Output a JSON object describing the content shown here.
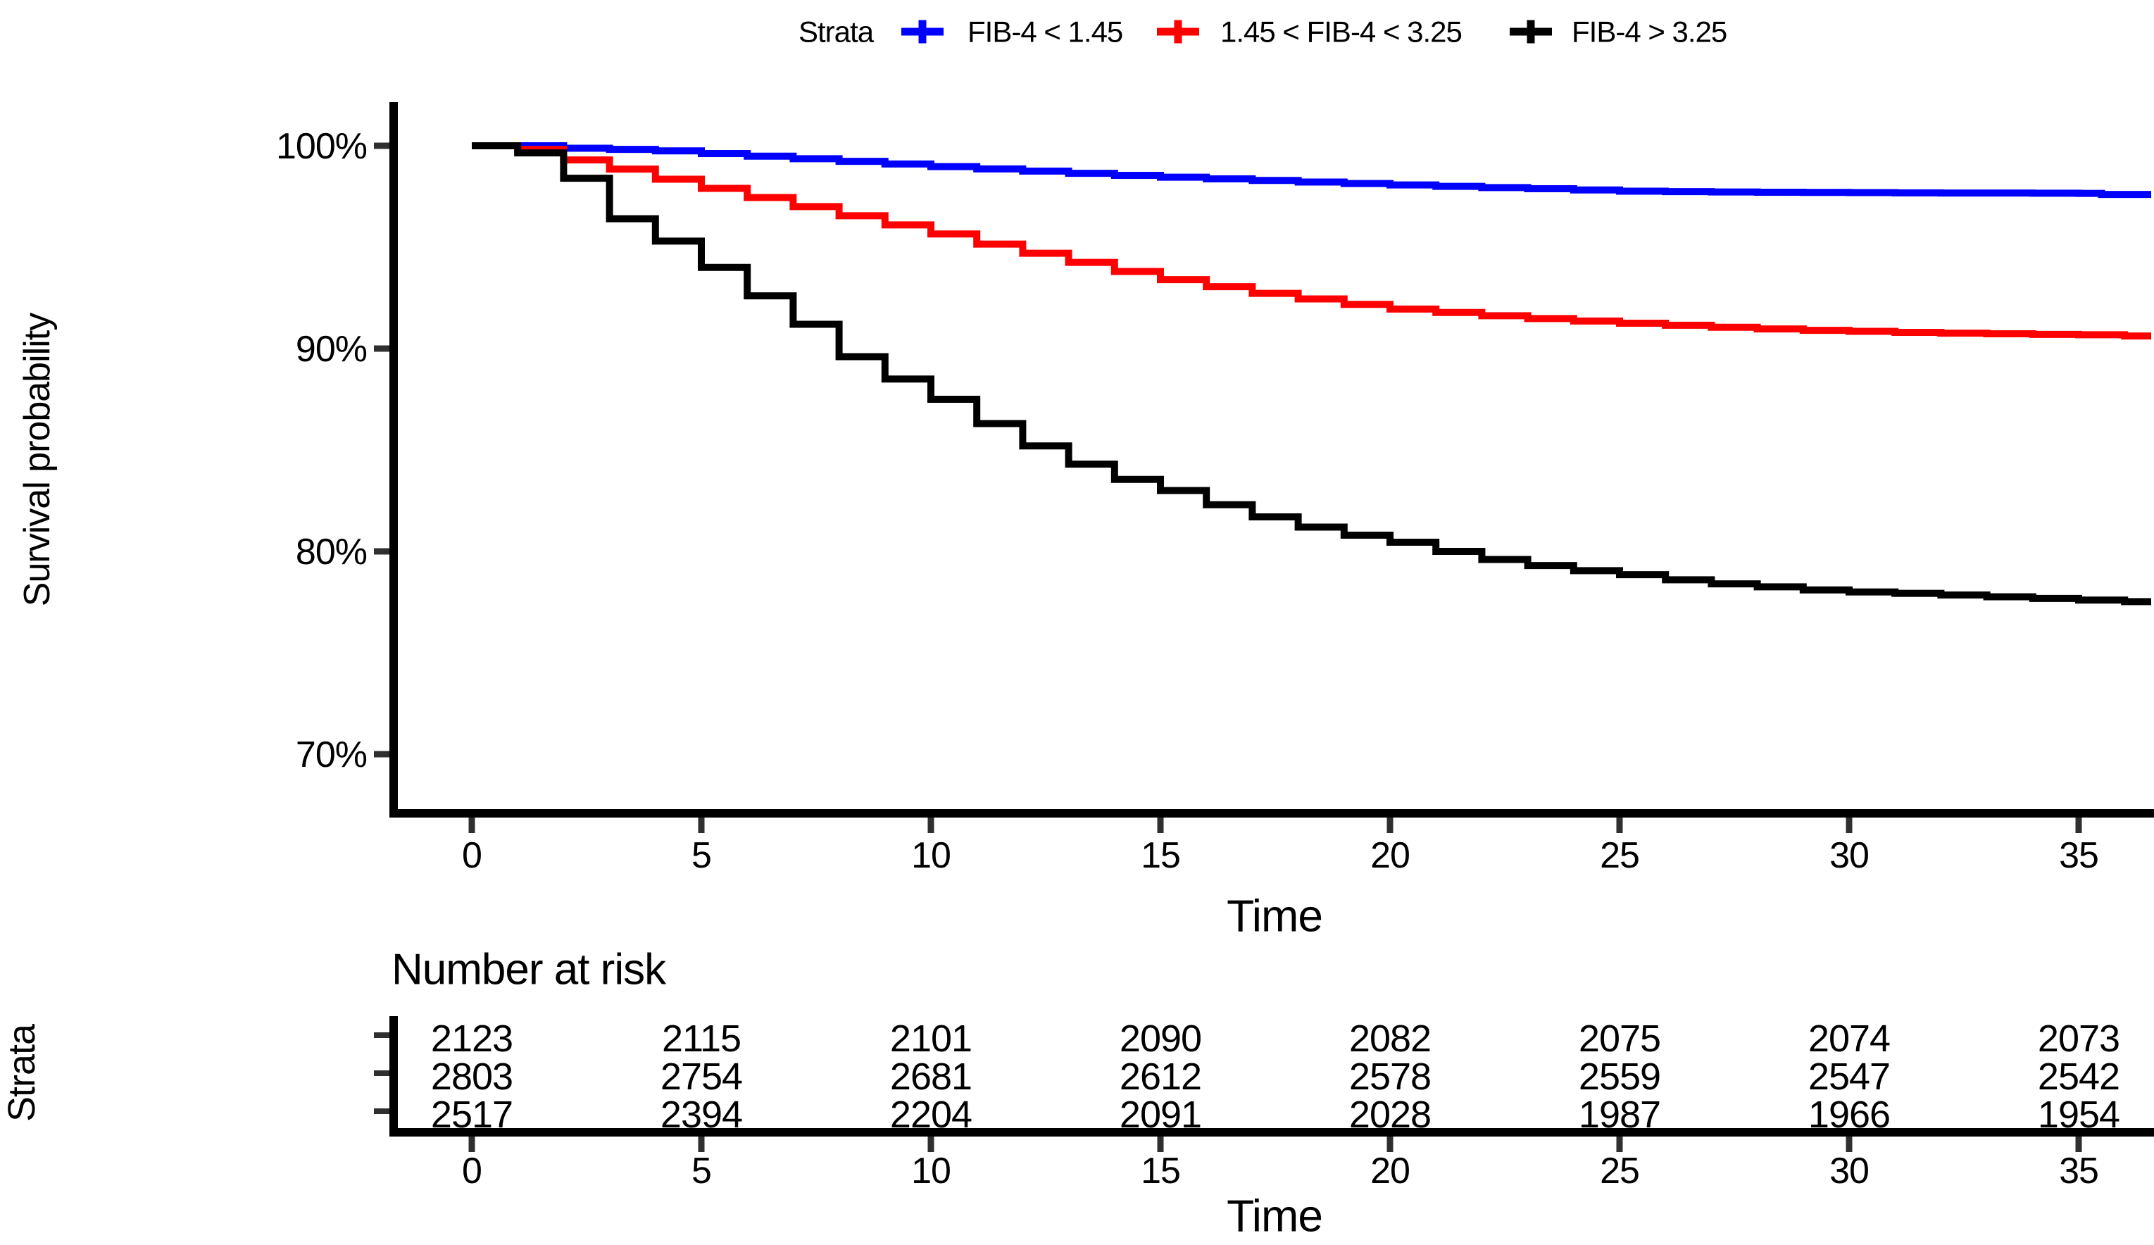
{
  "legend": {
    "title": "Strata",
    "items": [
      {
        "label": "FIB-4 < 1.45",
        "color": "#0000FF"
      },
      {
        "label": "1.45 < FIB-4 < 3.25",
        "color": "#FF0000"
      },
      {
        "label": "FIB-4 > 3.25",
        "color": "#000000"
      }
    ]
  },
  "main_plot": {
    "ylabel": "Survival probability",
    "xlabel": "Time",
    "yticks": [
      {
        "value": 100,
        "label": "100%"
      },
      {
        "value": 90,
        "label": "90%"
      },
      {
        "value": 80,
        "label": "80%"
      },
      {
        "value": 70,
        "label": "70%"
      }
    ],
    "xticks": [
      0,
      5,
      10,
      15,
      20,
      25,
      30,
      35
    ],
    "grid": false
  },
  "chart_data": {
    "type": "line",
    "subtype": "kaplan-meier-step",
    "title": "",
    "xlabel": "Time",
    "ylabel": "Survival probability",
    "xlim": [
      0,
      36.6
    ],
    "ylim_percent": [
      67,
      102
    ],
    "legend_position": "top",
    "series": [
      {
        "name": "FIB-4 < 1.45",
        "color": "#0000FF",
        "steps": [
          [
            0,
            100
          ],
          [
            2,
            99.88
          ],
          [
            3,
            99.82
          ],
          [
            4,
            99.75
          ],
          [
            5,
            99.62
          ],
          [
            6,
            99.49
          ],
          [
            7,
            99.36
          ],
          [
            8,
            99.23
          ],
          [
            9,
            99.1
          ],
          [
            10,
            98.97
          ],
          [
            11,
            98.86
          ],
          [
            12,
            98.75
          ],
          [
            13,
            98.64
          ],
          [
            14,
            98.54
          ],
          [
            15,
            98.45
          ],
          [
            16,
            98.37
          ],
          [
            17,
            98.29
          ],
          [
            18,
            98.21
          ],
          [
            19,
            98.14
          ],
          [
            20,
            98.07
          ],
          [
            21,
            98.0
          ],
          [
            22,
            97.94
          ],
          [
            23,
            97.88
          ],
          [
            24,
            97.82
          ],
          [
            25,
            97.76
          ],
          [
            26,
            97.74
          ],
          [
            27,
            97.72
          ],
          [
            28,
            97.71
          ],
          [
            29,
            97.7
          ],
          [
            30,
            97.69
          ],
          [
            31,
            97.68
          ],
          [
            32,
            97.67
          ],
          [
            34,
            97.66
          ],
          [
            35,
            97.65
          ],
          [
            35.5,
            97.6
          ]
        ]
      },
      {
        "name": "1.45 < FIB-4 < 3.25",
        "color": "#FF0000",
        "steps": [
          [
            0,
            100
          ],
          [
            1,
            99.82
          ],
          [
            2,
            99.3
          ],
          [
            3,
            98.85
          ],
          [
            4,
            98.35
          ],
          [
            5,
            97.9
          ],
          [
            6,
            97.45
          ],
          [
            7,
            97.0
          ],
          [
            8,
            96.55
          ],
          [
            9,
            96.1
          ],
          [
            10,
            95.65
          ],
          [
            11,
            95.15
          ],
          [
            12,
            94.7
          ],
          [
            13,
            94.25
          ],
          [
            14,
            93.8
          ],
          [
            15,
            93.4
          ],
          [
            16,
            93.05
          ],
          [
            17,
            92.72
          ],
          [
            18,
            92.45
          ],
          [
            19,
            92.18
          ],
          [
            20,
            91.95
          ],
          [
            21,
            91.78
          ],
          [
            22,
            91.62
          ],
          [
            23,
            91.48
          ],
          [
            24,
            91.36
          ],
          [
            25,
            91.25
          ],
          [
            26,
            91.15
          ],
          [
            27,
            91.05
          ],
          [
            28,
            90.97
          ],
          [
            29,
            90.9
          ],
          [
            30,
            90.85
          ],
          [
            31,
            90.8
          ],
          [
            32,
            90.76
          ],
          [
            33,
            90.73
          ],
          [
            34,
            90.7
          ],
          [
            35,
            90.68
          ],
          [
            36,
            90.62
          ]
        ]
      },
      {
        "name": "FIB-4 > 3.25",
        "color": "#000000",
        "steps": [
          [
            0,
            100
          ],
          [
            1,
            99.65
          ],
          [
            2,
            98.4
          ],
          [
            3,
            96.4
          ],
          [
            4,
            95.3
          ],
          [
            5,
            94.0
          ],
          [
            6,
            92.6
          ],
          [
            7,
            91.2
          ],
          [
            8,
            89.6
          ],
          [
            9,
            88.5
          ],
          [
            10,
            87.5
          ],
          [
            11,
            86.3
          ],
          [
            12,
            85.2
          ],
          [
            13,
            84.3
          ],
          [
            14,
            83.55
          ],
          [
            15,
            83.0
          ],
          [
            16,
            82.3
          ],
          [
            17,
            81.7
          ],
          [
            18,
            81.2
          ],
          [
            19,
            80.8
          ],
          [
            20,
            80.45
          ],
          [
            21,
            80.0
          ],
          [
            22,
            79.6
          ],
          [
            23,
            79.3
          ],
          [
            24,
            79.05
          ],
          [
            25,
            78.85
          ],
          [
            26,
            78.6
          ],
          [
            27,
            78.4
          ],
          [
            28,
            78.25
          ],
          [
            29,
            78.1
          ],
          [
            30,
            78.0
          ],
          [
            31,
            77.93
          ],
          [
            32,
            77.85
          ],
          [
            33,
            77.76
          ],
          [
            34,
            77.68
          ],
          [
            35,
            77.6
          ],
          [
            36,
            77.52
          ]
        ]
      }
    ]
  },
  "risk_table": {
    "title": "Number at risk",
    "ylabel": "Strata",
    "xlabel": "Time",
    "time_points": [
      0,
      5,
      10,
      15,
      20,
      25,
      30,
      35
    ],
    "rows": [
      {
        "label": "FIB-4 < 1.45",
        "color": "#0000FF",
        "values": [
          2123,
          2115,
          2101,
          2090,
          2082,
          2075,
          2074,
          2073
        ]
      },
      {
        "label": "1.45 < FIB-4 < 3.25",
        "color": "#FF0000",
        "values": [
          2803,
          2754,
          2681,
          2612,
          2578,
          2559,
          2547,
          2542
        ]
      },
      {
        "label": "FIB-4 > 3.25",
        "color": "#000000",
        "values": [
          2517,
          2394,
          2204,
          2091,
          2028,
          1987,
          1966,
          1954
        ]
      }
    ]
  }
}
